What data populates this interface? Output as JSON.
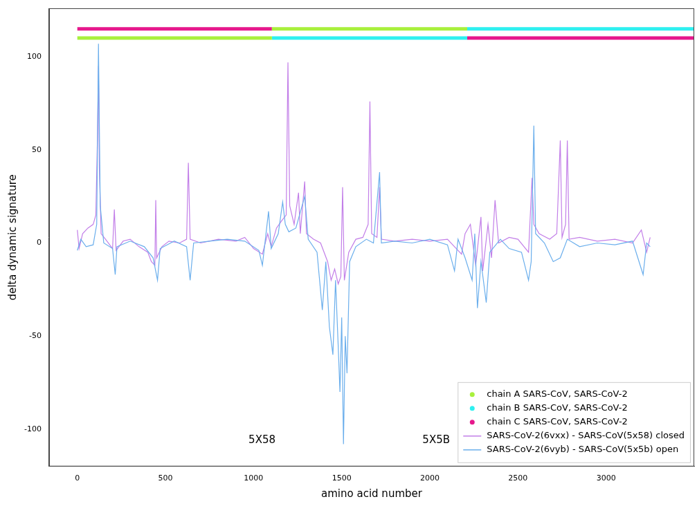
{
  "chart_data": {
    "type": "line",
    "x_label": "amino acid number",
    "y_label": "delta dynamic signature",
    "xlim": [
      -160,
      3500
    ],
    "xticks": [
      0,
      500,
      1000,
      1500,
      2000,
      2500,
      3000
    ],
    "ylim": [
      -120,
      126
    ],
    "yticks": [
      -100,
      -50,
      0,
      50,
      100
    ],
    "grid": false,
    "legend": "lower right",
    "insets": [
      {
        "label": "5X58"
      },
      {
        "label": "5X5B"
      }
    ],
    "series": [
      {
        "name": "chain A SARS-CoV, SARS-CoV-2",
        "color": "#a8f03c",
        "marker": "circle",
        "line_style": "solid",
        "x": [
          0,
          1104,
          1104,
          1104,
          2212
        ],
        "values": [
          110,
          110,
          null,
          115,
          115
        ]
      },
      {
        "name": "chain B SARS-CoV, SARS-CoV-2",
        "color": "#2ef0f0",
        "marker": "circle",
        "line_style": "solid",
        "x": [
          1104,
          2212,
          2212,
          2212,
          3500
        ],
        "values": [
          110,
          110,
          null,
          115,
          115
        ]
      },
      {
        "name": "chain C SARS-CoV, SARS-CoV-2",
        "color": "#e6188c",
        "marker": "circle",
        "line_style": "solid",
        "x": [
          0,
          1104,
          1104,
          2212,
          3500
        ],
        "values": [
          115,
          115,
          null,
          110,
          110
        ]
      },
      {
        "name": "SARS-CoV-2(6vxx) - SARS-CoV(5x58) closed",
        "color": "#c27ee8",
        "marker": "none",
        "line_style": "solid",
        "x": [
          0,
          10,
          30,
          60,
          90,
          105,
          115,
          120,
          125,
          135,
          160,
          200,
          210,
          220,
          260,
          300,
          350,
          400,
          420,
          440,
          445,
          450,
          480,
          520,
          580,
          620,
          630,
          640,
          700,
          800,
          900,
          950,
          1000,
          1050,
          1080,
          1100,
          1130,
          1160,
          1185,
          1195,
          1205,
          1230,
          1255,
          1265,
          1290,
          1300,
          1340,
          1380,
          1420,
          1440,
          1460,
          1480,
          1495,
          1505,
          1515,
          1540,
          1580,
          1620,
          1650,
          1660,
          1670,
          1700,
          1715,
          1725,
          1800,
          1900,
          2000,
          2100,
          2150,
          2180,
          2200,
          2230,
          2260,
          2290,
          2300,
          2330,
          2350,
          2370,
          2390,
          2450,
          2500,
          2560,
          2580,
          2590,
          2620,
          2680,
          2720,
          2740,
          2750,
          2770,
          2780,
          2790,
          2850,
          2950,
          3050,
          3150,
          3200,
          3230,
          3250
        ],
        "values": [
          7,
          -3,
          5,
          8,
          10,
          15,
          60,
          95,
          40,
          5,
          2,
          -3,
          18,
          -4,
          1,
          2,
          -2,
          -5,
          -10,
          -12,
          23,
          -8,
          -2,
          1,
          0,
          2,
          43,
          2,
          0,
          2,
          1,
          3,
          -3,
          -6,
          5,
          -2,
          8,
          12,
          15,
          97,
          20,
          10,
          27,
          5,
          33,
          5,
          2,
          0,
          -10,
          -20,
          -14,
          -22,
          -18,
          30,
          -20,
          -5,
          2,
          3,
          10,
          76,
          5,
          3,
          30,
          2,
          1,
          2,
          1,
          2,
          -3,
          -6,
          5,
          10,
          -12,
          14,
          -15,
          10,
          -8,
          23,
          0,
          3,
          2,
          -5,
          35,
          10,
          5,
          2,
          5,
          55,
          3,
          10,
          55,
          2,
          3,
          1,
          2,
          0,
          7,
          -5,
          3
        ]
      },
      {
        "name": "SARS-CoV-2(6vyb) - SARS-CoV(5x5b) open",
        "color": "#6aaeec",
        "marker": "none",
        "line_style": "solid",
        "x": [
          0,
          20,
          50,
          90,
          110,
          120,
          130,
          150,
          200,
          215,
          225,
          300,
          380,
          430,
          455,
          470,
          550,
          620,
          640,
          660,
          750,
          850,
          950,
          1030,
          1050,
          1085,
          1100,
          1140,
          1165,
          1180,
          1200,
          1240,
          1290,
          1310,
          1360,
          1390,
          1410,
          1430,
          1450,
          1465,
          1480,
          1490,
          1500,
          1510,
          1520,
          1530,
          1545,
          1580,
          1640,
          1680,
          1715,
          1725,
          1800,
          1900,
          2000,
          2100,
          2140,
          2160,
          2200,
          2240,
          2255,
          2270,
          2290,
          2320,
          2340,
          2400,
          2450,
          2520,
          2560,
          2575,
          2590,
          2600,
          2650,
          2700,
          2740,
          2780,
          2850,
          2950,
          3050,
          3150,
          3210,
          3230,
          3250
        ],
        "values": [
          -4,
          2,
          -2,
          -1,
          10,
          107,
          20,
          0,
          -3,
          -17,
          -2,
          1,
          -2,
          -8,
          -20,
          -3,
          1,
          -2,
          -20,
          0,
          1,
          2,
          1,
          -4,
          -12,
          17,
          -3,
          5,
          22,
          10,
          6,
          8,
          25,
          2,
          -5,
          -36,
          -10,
          -45,
          -60,
          -20,
          -55,
          -80,
          -40,
          -108,
          -50,
          -70,
          -10,
          -2,
          2,
          0,
          38,
          0,
          1,
          0,
          2,
          -1,
          -15,
          2,
          -8,
          -20,
          5,
          -35,
          -10,
          -32,
          -5,
          2,
          -3,
          -5,
          -20,
          -10,
          63,
          5,
          0,
          -10,
          -8,
          2,
          -2,
          0,
          -1,
          1,
          -17,
          0,
          -2
        ]
      }
    ]
  }
}
